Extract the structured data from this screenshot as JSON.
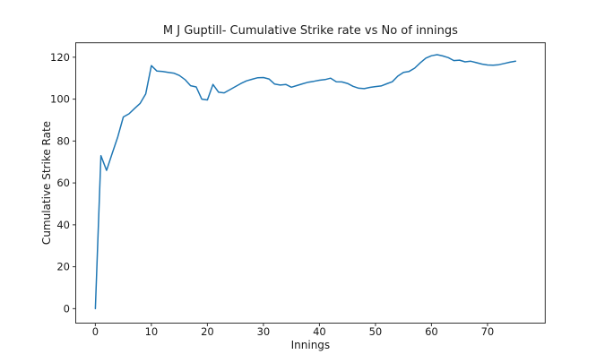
{
  "figure": {
    "background": "#ffffff",
    "text_color": "#1a1a1a",
    "spine_color": "#333333"
  },
  "chart_data": {
    "type": "line",
    "title": "M J Guptill- Cumulative Strike rate vs No of innings",
    "xlabel": "Innings",
    "ylabel": "Cumulative Strike Rate",
    "legend": "none",
    "grid": false,
    "line_color": "#1f77b4",
    "x_ticks": [
      0,
      10,
      20,
      30,
      40,
      50,
      60,
      70
    ],
    "y_ticks": [
      0,
      20,
      40,
      60,
      80,
      100,
      120
    ],
    "xlim": [
      -3.5,
      80.3
    ],
    "ylim": [
      -6.9,
      126.9
    ],
    "series": [
      {
        "name": "Cumulative Strike Rate",
        "x": [
          0,
          1,
          2,
          3,
          4,
          5,
          6,
          7,
          8,
          9,
          10,
          11,
          12,
          13,
          14,
          15,
          16,
          17,
          18,
          19,
          20,
          21,
          22,
          23,
          24,
          25,
          26,
          27,
          28,
          29,
          30,
          31,
          32,
          33,
          34,
          35,
          36,
          37,
          38,
          39,
          40,
          41,
          42,
          43,
          44,
          45,
          46,
          47,
          48,
          49,
          50,
          51,
          52,
          53,
          54,
          55,
          56,
          57,
          58,
          59,
          60,
          61,
          62,
          63,
          64,
          65,
          66,
          67,
          68,
          69,
          70,
          71,
          72,
          73,
          74,
          75
        ],
        "values": [
          0,
          73,
          66,
          74,
          82,
          91.5,
          93,
          95.5,
          98,
          102.5,
          116,
          113.4,
          113.2,
          112.8,
          112.4,
          111.3,
          109.3,
          106.4,
          105.8,
          100,
          99.6,
          107,
          103.3,
          103,
          104.5,
          106,
          107.5,
          108.7,
          109.5,
          110.2,
          110.3,
          109.6,
          107.2,
          106.7,
          107,
          105.7,
          106.5,
          107.3,
          108.1,
          108.5,
          109,
          109.3,
          110,
          108.3,
          108.2,
          107.5,
          106.1,
          105.2,
          105,
          105.6,
          106,
          106.3,
          107.3,
          108.3,
          111,
          112.8,
          113.2,
          114.8,
          117.3,
          119.6,
          120.7,
          121.2,
          120.6,
          119.8,
          118.4,
          118.6,
          117.8,
          118.1,
          117.4,
          116.7,
          116.3,
          116.2,
          116.4,
          117,
          117.6,
          118.1
        ]
      }
    ]
  }
}
